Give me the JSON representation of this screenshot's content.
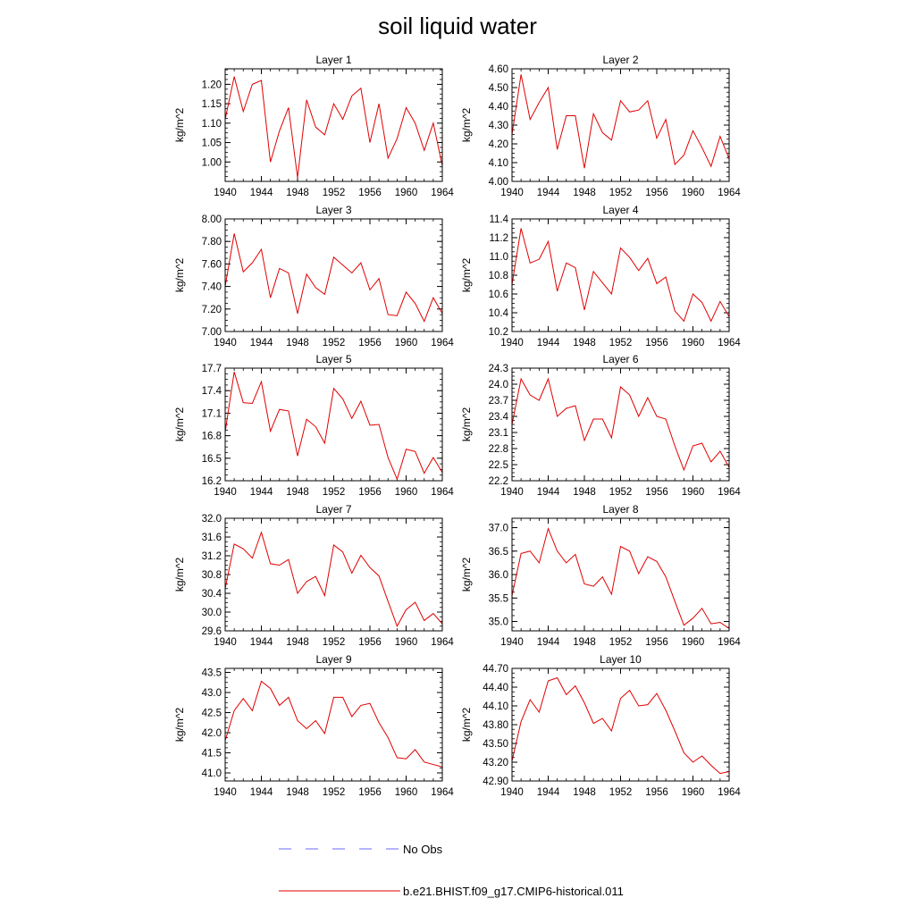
{
  "figure": {
    "title": "soil liquid water",
    "legend": [
      {
        "label": "No Obs",
        "color": "#6a6aff",
        "dash": "dashed"
      },
      {
        "label": "b.e21.BHIST.f09_g17.CMIP6-historical.011",
        "color": "#e00000",
        "dash": "solid"
      }
    ]
  },
  "chart_data": [
    {
      "type": "line",
      "title": "Layer 1",
      "ylabel": "kg/m^2",
      "xlim": [
        1940,
        1964
      ],
      "xticks": [
        "1940",
        "1944",
        "1948",
        "1952",
        "1956",
        "1960",
        "1964"
      ],
      "ylim": [
        0.95,
        1.24
      ],
      "yticks": [
        "1.00",
        "1.05",
        "1.10",
        "1.15",
        "1.20"
      ],
      "x": [
        1940,
        1941,
        1942,
        1943,
        1944,
        1945,
        1946,
        1947,
        1948,
        1949,
        1950,
        1951,
        1952,
        1953,
        1954,
        1955,
        1956,
        1957,
        1958,
        1959,
        1960,
        1961,
        1962,
        1963,
        1964
      ],
      "series": [
        {
          "name": "b.e21.BHIST.f09_g17.CMIP6-historical.011",
          "color": "#e00000",
          "values": [
            1.11,
            1.22,
            1.13,
            1.2,
            1.21,
            1.0,
            1.08,
            1.14,
            0.96,
            1.16,
            1.09,
            1.07,
            1.15,
            1.11,
            1.17,
            1.19,
            1.05,
            1.15,
            1.01,
            1.06,
            1.14,
            1.1,
            1.03,
            1.1,
            0.99
          ]
        }
      ]
    },
    {
      "type": "line",
      "title": "Layer 2",
      "ylabel": "kg/m^2",
      "xlim": [
        1940,
        1964
      ],
      "xticks": [
        "1940",
        "1944",
        "1948",
        "1952",
        "1956",
        "1960",
        "1964"
      ],
      "ylim": [
        4.0,
        4.6
      ],
      "yticks": [
        "4.00",
        "4.10",
        "4.20",
        "4.30",
        "4.40",
        "4.50",
        "4.60"
      ],
      "x": [
        1940,
        1941,
        1942,
        1943,
        1944,
        1945,
        1946,
        1947,
        1948,
        1949,
        1950,
        1951,
        1952,
        1953,
        1954,
        1955,
        1956,
        1957,
        1958,
        1959,
        1960,
        1961,
        1962,
        1963,
        1964
      ],
      "series": [
        {
          "name": "b.e21.BHIST.f09_g17.CMIP6-historical.011",
          "color": "#e00000",
          "values": [
            4.25,
            4.57,
            4.33,
            4.42,
            4.5,
            4.17,
            4.35,
            4.35,
            4.07,
            4.36,
            4.26,
            4.22,
            4.43,
            4.37,
            4.38,
            4.43,
            4.23,
            4.33,
            4.09,
            4.14,
            4.27,
            4.18,
            4.08,
            4.24,
            4.12
          ]
        }
      ]
    },
    {
      "type": "line",
      "title": "Layer 3",
      "ylabel": "kg/m^2",
      "xlim": [
        1940,
        1964
      ],
      "xticks": [
        "1940",
        "1944",
        "1948",
        "1952",
        "1956",
        "1960",
        "1964"
      ],
      "ylim": [
        7.0,
        8.0
      ],
      "yticks": [
        "7.00",
        "7.20",
        "7.40",
        "7.60",
        "7.80",
        "8.00"
      ],
      "x": [
        1940,
        1941,
        1942,
        1943,
        1944,
        1945,
        1946,
        1947,
        1948,
        1949,
        1950,
        1951,
        1952,
        1953,
        1954,
        1955,
        1956,
        1957,
        1958,
        1959,
        1960,
        1961,
        1962,
        1963,
        1964
      ],
      "series": [
        {
          "name": "b.e21.BHIST.f09_g17.CMIP6-historical.011",
          "color": "#e00000",
          "values": [
            7.4,
            7.87,
            7.53,
            7.61,
            7.73,
            7.3,
            7.56,
            7.52,
            7.16,
            7.51,
            7.39,
            7.33,
            7.66,
            7.59,
            7.52,
            7.61,
            7.37,
            7.47,
            7.15,
            7.14,
            7.35,
            7.25,
            7.09,
            7.3,
            7.16
          ]
        }
      ]
    },
    {
      "type": "line",
      "title": "Layer 4",
      "ylabel": "kg/m^2",
      "xlim": [
        1940,
        1964
      ],
      "xticks": [
        "1940",
        "1944",
        "1948",
        "1952",
        "1956",
        "1960",
        "1964"
      ],
      "ylim": [
        10.2,
        11.4
      ],
      "yticks": [
        "10.2",
        "10.4",
        "10.6",
        "10.8",
        "11.0",
        "11.2",
        "11.4"
      ],
      "x": [
        1940,
        1941,
        1942,
        1943,
        1944,
        1945,
        1946,
        1947,
        1948,
        1949,
        1950,
        1951,
        1952,
        1953,
        1954,
        1955,
        1956,
        1957,
        1958,
        1959,
        1960,
        1961,
        1962,
        1963,
        1964
      ],
      "series": [
        {
          "name": "b.e21.BHIST.f09_g17.CMIP6-historical.011",
          "color": "#e00000",
          "values": [
            10.7,
            11.3,
            10.93,
            10.97,
            11.16,
            10.63,
            10.93,
            10.88,
            10.43,
            10.84,
            10.72,
            10.6,
            11.09,
            10.99,
            10.85,
            10.98,
            10.71,
            10.78,
            10.42,
            10.31,
            10.6,
            10.51,
            10.31,
            10.52,
            10.36
          ]
        }
      ]
    },
    {
      "type": "line",
      "title": "Layer 5",
      "ylabel": "kg/m^2",
      "xlim": [
        1940,
        1964
      ],
      "xticks": [
        "1940",
        "1944",
        "1948",
        "1952",
        "1956",
        "1960",
        "1964"
      ],
      "ylim": [
        16.2,
        17.7
      ],
      "yticks": [
        "16.2",
        "16.5",
        "16.8",
        "17.1",
        "17.4",
        "17.7"
      ],
      "x": [
        1940,
        1941,
        1942,
        1943,
        1944,
        1945,
        1946,
        1947,
        1948,
        1949,
        1950,
        1951,
        1952,
        1953,
        1954,
        1955,
        1956,
        1957,
        1958,
        1959,
        1960,
        1961,
        1962,
        1963,
        1964
      ],
      "series": [
        {
          "name": "b.e21.BHIST.f09_g17.CMIP6-historical.011",
          "color": "#e00000",
          "values": [
            16.85,
            17.65,
            17.24,
            17.23,
            17.52,
            16.86,
            17.15,
            17.13,
            16.53,
            17.02,
            16.92,
            16.7,
            17.43,
            17.29,
            17.03,
            17.26,
            16.94,
            16.95,
            16.51,
            16.22,
            16.62,
            16.59,
            16.3,
            16.51,
            16.31
          ]
        }
      ]
    },
    {
      "type": "line",
      "title": "Layer 6",
      "ylabel": "kg/m^2",
      "xlim": [
        1940,
        1964
      ],
      "xticks": [
        "1940",
        "1944",
        "1948",
        "1952",
        "1956",
        "1960",
        "1964"
      ],
      "ylim": [
        22.2,
        24.3
      ],
      "yticks": [
        "22.2",
        "22.5",
        "22.8",
        "23.1",
        "23.4",
        "23.7",
        "24.0",
        "24.3"
      ],
      "x": [
        1940,
        1941,
        1942,
        1943,
        1944,
        1945,
        1946,
        1947,
        1948,
        1949,
        1950,
        1951,
        1952,
        1953,
        1954,
        1955,
        1956,
        1957,
        1958,
        1959,
        1960,
        1961,
        1962,
        1963,
        1964
      ],
      "series": [
        {
          "name": "b.e21.BHIST.f09_g17.CMIP6-historical.011",
          "color": "#e00000",
          "values": [
            23.25,
            24.1,
            23.8,
            23.7,
            24.1,
            23.4,
            23.55,
            23.6,
            22.95,
            23.35,
            23.35,
            23.0,
            23.95,
            23.8,
            23.4,
            23.75,
            23.4,
            23.35,
            22.85,
            22.4,
            22.85,
            22.9,
            22.55,
            22.75,
            22.45
          ]
        }
      ]
    },
    {
      "type": "line",
      "title": "Layer 7",
      "ylabel": "kg/m^2",
      "xlim": [
        1940,
        1964
      ],
      "xticks": [
        "1940",
        "1944",
        "1948",
        "1952",
        "1956",
        "1960",
        "1964"
      ],
      "ylim": [
        29.6,
        32.0
      ],
      "yticks": [
        "29.6",
        "30.0",
        "30.4",
        "30.8",
        "31.2",
        "31.6",
        "32.0"
      ],
      "x": [
        1940,
        1941,
        1942,
        1943,
        1944,
        1945,
        1946,
        1947,
        1948,
        1949,
        1950,
        1951,
        1952,
        1953,
        1954,
        1955,
        1956,
        1957,
        1958,
        1959,
        1960,
        1961,
        1962,
        1963,
        1964
      ],
      "series": [
        {
          "name": "b.e21.BHIST.f09_g17.CMIP6-historical.011",
          "color": "#e00000",
          "values": [
            30.5,
            31.45,
            31.35,
            31.15,
            31.7,
            31.03,
            31.0,
            31.12,
            30.4,
            30.65,
            30.76,
            30.35,
            31.43,
            31.28,
            30.83,
            31.21,
            30.95,
            30.77,
            30.23,
            29.7,
            30.05,
            30.21,
            29.82,
            29.97,
            29.75
          ]
        }
      ]
    },
    {
      "type": "line",
      "title": "Layer 8",
      "ylabel": "kg/m^2",
      "xlim": [
        1940,
        1964
      ],
      "xticks": [
        "1940",
        "1944",
        "1948",
        "1952",
        "1956",
        "1960",
        "1964"
      ],
      "ylim": [
        34.8,
        37.2
      ],
      "yticks": [
        "35.0",
        "35.5",
        "36.0",
        "36.5",
        "37.0"
      ],
      "x": [
        1940,
        1941,
        1942,
        1943,
        1944,
        1945,
        1946,
        1947,
        1948,
        1949,
        1950,
        1951,
        1952,
        1953,
        1954,
        1955,
        1956,
        1957,
        1958,
        1959,
        1960,
        1961,
        1962,
        1963,
        1964
      ],
      "series": [
        {
          "name": "b.e21.BHIST.f09_g17.CMIP6-historical.011",
          "color": "#e00000",
          "values": [
            35.55,
            36.45,
            36.5,
            36.25,
            36.98,
            36.5,
            36.25,
            36.43,
            35.8,
            35.75,
            35.95,
            35.58,
            36.6,
            36.5,
            36.02,
            36.38,
            36.28,
            35.95,
            35.43,
            34.92,
            35.07,
            35.28,
            34.95,
            34.98,
            34.85
          ]
        }
      ]
    },
    {
      "type": "line",
      "title": "Layer 9",
      "ylabel": "kg/m^2",
      "xlim": [
        1940,
        1964
      ],
      "xticks": [
        "1940",
        "1944",
        "1948",
        "1952",
        "1956",
        "1960",
        "1964"
      ],
      "ylim": [
        40.8,
        43.6
      ],
      "yticks": [
        "41.0",
        "41.5",
        "42.0",
        "42.5",
        "43.0",
        "43.5"
      ],
      "x": [
        1940,
        1941,
        1942,
        1943,
        1944,
        1945,
        1946,
        1947,
        1948,
        1949,
        1950,
        1951,
        1952,
        1953,
        1954,
        1955,
        1956,
        1957,
        1958,
        1959,
        1960,
        1961,
        1962,
        1963,
        1964
      ],
      "series": [
        {
          "name": "b.e21.BHIST.f09_g17.CMIP6-historical.011",
          "color": "#e00000",
          "values": [
            41.8,
            42.55,
            42.85,
            42.55,
            43.28,
            43.1,
            42.68,
            42.88,
            42.3,
            42.1,
            42.3,
            41.98,
            42.88,
            42.88,
            42.4,
            42.68,
            42.73,
            42.25,
            41.88,
            41.38,
            41.35,
            41.58,
            41.27,
            41.21,
            41.15
          ]
        }
      ]
    },
    {
      "type": "line",
      "title": "Layer 10",
      "ylabel": "kg/m^2",
      "xlim": [
        1940,
        1964
      ],
      "xticks": [
        "1940",
        "1944",
        "1948",
        "1952",
        "1956",
        "1960",
        "1964"
      ],
      "ylim": [
        42.9,
        44.7
      ],
      "yticks": [
        "42.90",
        "43.20",
        "43.50",
        "43.80",
        "44.10",
        "44.40",
        "44.70"
      ],
      "x": [
        1940,
        1941,
        1942,
        1943,
        1944,
        1945,
        1946,
        1947,
        1948,
        1949,
        1950,
        1951,
        1952,
        1953,
        1954,
        1955,
        1956,
        1957,
        1958,
        1959,
        1960,
        1961,
        1962,
        1963,
        1964
      ],
      "series": [
        {
          "name": "b.e21.BHIST.f09_g17.CMIP6-historical.011",
          "color": "#e00000",
          "values": [
            43.22,
            43.85,
            44.2,
            44.0,
            44.5,
            44.55,
            44.28,
            44.42,
            44.15,
            43.82,
            43.9,
            43.7,
            44.22,
            44.35,
            44.1,
            44.12,
            44.3,
            44.03,
            43.7,
            43.35,
            43.2,
            43.3,
            43.15,
            43.02,
            43.05
          ]
        }
      ]
    }
  ]
}
